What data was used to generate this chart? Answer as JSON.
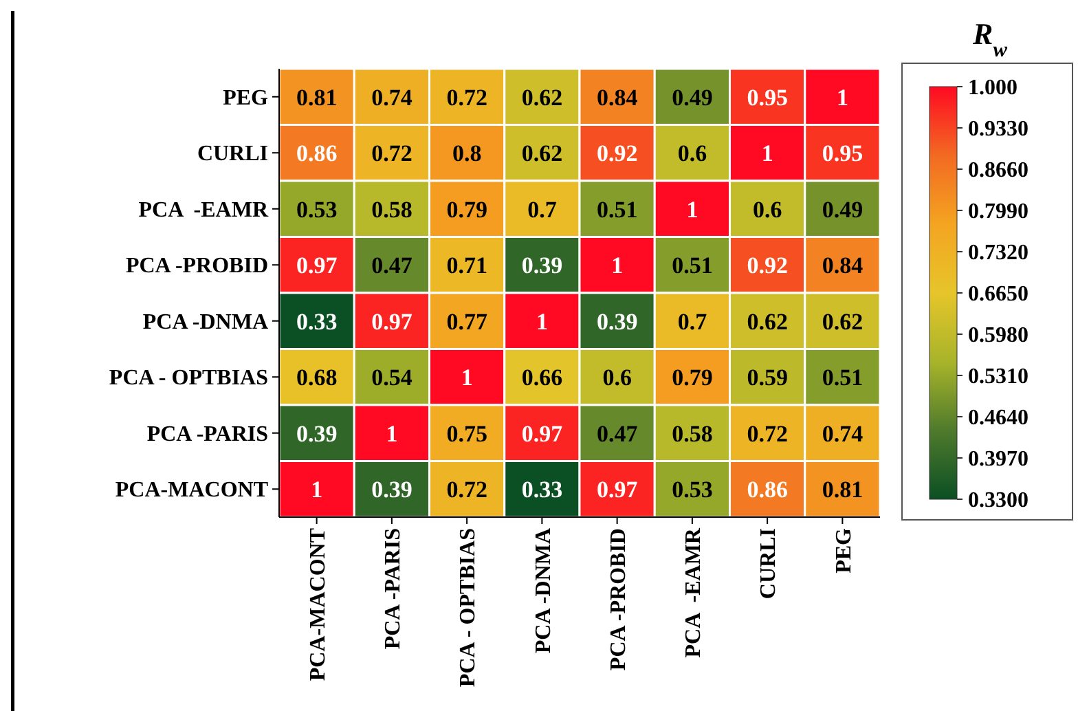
{
  "chart_data": {
    "type": "heatmap",
    "clabel": "R$_{w}$",
    "categories": [
      "PCA-MACONT",
      "PCA -PARIS",
      "PCA - OPTBIAS",
      "PCA -DNMA",
      "PCA -PROBID",
      "PCA  -EAMR",
      "CURLI",
      "PEG"
    ],
    "y_categories": [
      "PEG",
      "CURLI",
      "PCA  -EAMR",
      "PCA -PROBID",
      "PCA -DNMA",
      "PCA - OPTBIAS",
      "PCA -PARIS",
      "PCA-MACONT"
    ],
    "cells": [
      [
        0.81,
        0.74,
        0.72,
        0.62,
        0.84,
        0.49,
        0.95,
        1
      ],
      [
        0.86,
        0.72,
        0.8,
        0.62,
        0.92,
        0.6,
        1,
        0.95
      ],
      [
        0.53,
        0.58,
        0.79,
        0.7,
        0.51,
        1,
        0.6,
        0.49
      ],
      [
        0.97,
        0.47,
        0.71,
        0.39,
        1,
        0.51,
        0.92,
        0.84
      ],
      [
        0.33,
        0.97,
        0.77,
        1,
        0.39,
        0.7,
        0.62,
        0.62
      ],
      [
        0.68,
        0.54,
        1,
        0.66,
        0.6,
        0.79,
        0.59,
        0.51
      ],
      [
        0.39,
        1,
        0.75,
        0.97,
        0.47,
        0.58,
        0.72,
        0.74
      ],
      [
        1,
        0.39,
        0.72,
        0.33,
        0.97,
        0.53,
        0.86,
        0.81
      ]
    ],
    "clim": [
      0.33,
      1
    ],
    "cticks": [
      {
        "value": 1,
        "label": "1.000"
      },
      {
        "value": 0.933,
        "label": "0.9330"
      },
      {
        "value": 0.866,
        "label": "0.8660"
      },
      {
        "value": 0.799,
        "label": "0.7990"
      },
      {
        "value": 0.732,
        "label": "0.7320"
      },
      {
        "value": 0.665,
        "label": "0.6650"
      },
      {
        "value": 0.598,
        "label": "0.5980"
      },
      {
        "value": 0.531,
        "label": "0.5310"
      },
      {
        "value": 0.464,
        "label": "0.4640"
      },
      {
        "value": 0.397,
        "label": "0.3970"
      },
      {
        "value": 0.33,
        "label": "0.3300"
      }
    ],
    "data_labels": true
  }
}
